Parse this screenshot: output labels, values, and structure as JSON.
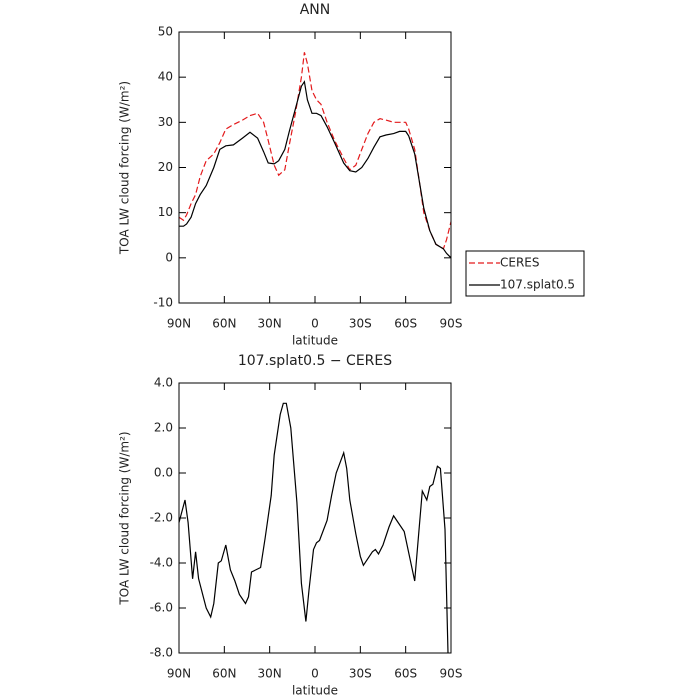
{
  "chart_data": [
    {
      "type": "line",
      "title": "ANN",
      "xlabel": "latitude",
      "ylabel": "TOA LW cloud forcing (W/m²)",
      "x": [
        90,
        87,
        85,
        82,
        79,
        76,
        72,
        67,
        63,
        59,
        54,
        48,
        43,
        38,
        34,
        31,
        27,
        24,
        20,
        17,
        13,
        9,
        7,
        5,
        2,
        -1,
        -4,
        -8,
        -13,
        -19,
        -23,
        -27,
        -31,
        -35,
        -39,
        -43,
        -47,
        -52,
        -56,
        -60,
        -62,
        -66,
        -69,
        -72,
        -76,
        -80,
        -85,
        -87,
        -90
      ],
      "series": [
        {
          "name": "CERES",
          "color": "#e31a1c",
          "line_style": "dashed",
          "values": [
            9,
            8.3,
            9.5,
            12,
            14,
            18,
            21.5,
            23,
            25.5,
            28.5,
            29.5,
            30.5,
            31.5,
            32,
            30,
            26,
            20.5,
            18.3,
            19.5,
            25,
            32,
            40,
            45.5,
            43,
            37,
            35,
            34,
            30,
            26,
            22,
            19.5,
            20.5,
            24,
            27.5,
            30,
            30.8,
            30.5,
            30,
            30,
            30,
            28.5,
            24,
            17,
            10,
            6,
            3,
            2,
            4,
            8
          ]
        },
        {
          "name": "107.splat0.5",
          "color": "#000000",
          "line_style": "solid",
          "values": [
            7,
            7,
            7.5,
            9,
            12,
            14,
            16,
            20,
            24,
            24.8,
            25,
            26.5,
            27.8,
            26.5,
            23.5,
            21,
            20.8,
            21.5,
            24,
            28,
            33,
            38,
            39,
            35,
            32,
            32,
            31.5,
            29,
            25.5,
            21,
            19.3,
            19,
            20,
            22,
            24.5,
            26.8,
            27.2,
            27.5,
            28,
            28,
            27,
            23,
            17,
            11,
            6,
            3,
            2,
            1,
            0
          ]
        }
      ],
      "xlim": [
        90,
        -90
      ],
      "xticks": [
        {
          "value": 90,
          "label": "90N"
        },
        {
          "value": 60,
          "label": "60N"
        },
        {
          "value": 30,
          "label": "30N"
        },
        0,
        {
          "value": -30,
          "label": "30S"
        },
        {
          "value": -60,
          "label": "60S"
        },
        {
          "value": -90,
          "label": "90S"
        }
      ],
      "ylim": [
        -10,
        50
      ],
      "yticks": [
        -10,
        0,
        10,
        20,
        30,
        40,
        50
      ],
      "legend": "right"
    },
    {
      "type": "line",
      "title": "107.splat0.5 − CERES",
      "xlabel": "latitude",
      "ylabel": "TOA LW cloud forcing (W/m²)",
      "x": [
        90,
        86,
        84,
        81,
        79,
        77,
        72,
        69,
        67,
        64,
        62,
        59,
        56,
        53,
        50,
        46,
        44,
        42,
        36,
        33,
        29,
        27,
        23,
        21,
        19,
        16,
        12,
        9,
        6,
        4,
        1,
        -1,
        -3,
        -8,
        -11,
        -14,
        -19,
        -21,
        -23,
        -27,
        -30,
        -32,
        -34,
        -38,
        -40,
        -42,
        -45,
        -49,
        -52,
        -55,
        -59,
        -66,
        -71,
        -74,
        -76,
        -78,
        -81,
        -83,
        -86,
        -88
      ],
      "series": [
        {
          "color": "#000000",
          "values": [
            -2.2,
            -1.2,
            -2.2,
            -4.7,
            -3.5,
            -4.7,
            -6,
            -6.4,
            -5.8,
            -4,
            -3.9,
            -3.2,
            -4.3,
            -4.8,
            -5.4,
            -5.8,
            -5.5,
            -4.4,
            -4.2,
            -2.9,
            -1,
            0.8,
            2.6,
            3.1,
            3.1,
            2,
            -1.3,
            -4.9,
            -6.6,
            -5.2,
            -3.4,
            -3.1,
            -3,
            -2.1,
            -1,
            0,
            0.9,
            0.2,
            -1.2,
            -2.7,
            -3.7,
            -4.1,
            -3.9,
            -3.5,
            -3.4,
            -3.6,
            -3.2,
            -2.4,
            -1.9,
            -2.2,
            -2.6,
            -4.8,
            -0.8,
            -1.2,
            -0.6,
            -0.5,
            0.3,
            0.2,
            -2.5,
            -8
          ]
        }
      ],
      "xlim": [
        90,
        -90
      ],
      "xticks": [
        {
          "value": 90,
          "label": "90N"
        },
        {
          "value": 60,
          "label": "60N"
        },
        {
          "value": 30,
          "label": "30N"
        },
        0,
        {
          "value": -30,
          "label": "30S"
        },
        {
          "value": -60,
          "label": "60S"
        },
        {
          "value": -90,
          "label": "90S"
        }
      ],
      "ylim": [
        -8,
        4
      ],
      "yticks": [
        {
          "value": -8,
          "label": "-8.0"
        },
        {
          "value": -6,
          "label": "-6.0"
        },
        {
          "value": -4,
          "label": "-4.0"
        },
        {
          "value": -2,
          "label": "-2.0"
        },
        {
          "value": 0,
          "label": "0.0"
        },
        {
          "value": 2,
          "label": "2.0"
        },
        {
          "value": 4,
          "label": "4.0"
        }
      ]
    }
  ]
}
